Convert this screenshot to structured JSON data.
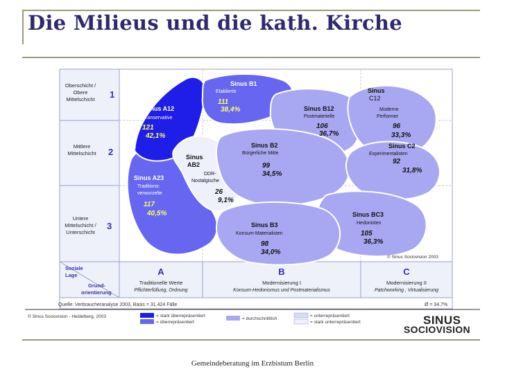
{
  "title": "Die Milieus und die kath. Kirche",
  "footer": "Gemeindeberatung im Erzbistum Berlin",
  "colors": {
    "strongly_over": "#1e1ee8",
    "over": "#6666f0",
    "average": "#a8a8f2",
    "under": "#d9dcf5",
    "strongly_under": "#eef0fb",
    "grid_border": "#9aa0c8",
    "label_box": "#eef1fa"
  },
  "rows": [
    {
      "label": "Oberschicht / Obere Mittelschicht",
      "number": "1"
    },
    {
      "label": "Mittlere Mittelschicht",
      "number": "2"
    },
    {
      "label": "Untere Mittelschicht / Unterschicht",
      "number": "3"
    }
  ],
  "axes": {
    "corner_top": "Soziale Lage",
    "corner_bottom": "Grund-orientierung"
  },
  "columns": [
    {
      "letter": "A",
      "line1": "Traditionelle Werte",
      "line2": "Pflichterfüllung, Ordnung"
    },
    {
      "letter": "B",
      "line1": "Modernisierung I",
      "line2": "Konsum-Hedonismus und Postmaterialismus"
    },
    {
      "letter": "C",
      "line1": "Modernisierung II",
      "line2": "Patchworking , Virtualisierung"
    }
  ],
  "milieus": [
    {
      "id": "B1",
      "name": "Sinus B1",
      "sub": "Etablierte",
      "index": "111",
      "share": "38,4%",
      "category": "over"
    },
    {
      "id": "A12",
      "name": "Sinus A12",
      "sub": "Konservative",
      "index": "121",
      "share": "42,1%",
      "category": "strongly_over"
    },
    {
      "id": "B12",
      "name": "Sinus B12",
      "sub": "Postmaterielle",
      "index": "106",
      "share": "36,7%",
      "category": "average"
    },
    {
      "id": "C12",
      "name": "Sinus C12",
      "sub": "Moderne Performer",
      "index": "96",
      "share": "33,3%",
      "category": "average"
    },
    {
      "id": "AB2",
      "name": "Sinus AB2",
      "sub": "DDR-Nostalgische",
      "index": "26",
      "share": "9,1%",
      "category": "strongly_under"
    },
    {
      "id": "B2",
      "name": "Sinus B2",
      "sub": "Bürgerliche Mitte",
      "index": "99",
      "share": "34,5%",
      "category": "average"
    },
    {
      "id": "C2",
      "name": "Sinus C2",
      "sub": "Experimentalisten",
      "index": "92",
      "share": "31,8%",
      "category": "average"
    },
    {
      "id": "A23",
      "name": "Sinus A23",
      "sub": "Traditions-verwurzelte",
      "index": "117",
      "share": "40,5%",
      "category": "over"
    },
    {
      "id": "BC3",
      "name": "Sinus BC3",
      "sub": "Hedonisten",
      "index": "105",
      "share": "36,3%",
      "category": "average"
    },
    {
      "id": "B3",
      "name": "Sinus B3",
      "sub": "Konsum-Materialisten",
      "index": "98",
      "share": "34,0%",
      "category": "average"
    }
  ],
  "copyright_inner": "© Sinus Sociovision 2003",
  "source": "Quelle: Verbraucheranalyse 2003, Basis = 31.424 Fälle",
  "average_note": "Ø = 34,7%",
  "copyright_outer": "© Sinus Sociovision -  Heidelberg, 2003",
  "legend": [
    {
      "label": "= stark überrepräsentiert",
      "category": "strongly_over"
    },
    {
      "label": "= überrepräsentiert",
      "category": "over"
    },
    {
      "label": "= durchschnittlich",
      "category": "average"
    },
    {
      "label": "= unterrepräsentiert",
      "category": "under"
    },
    {
      "label": "= stark unterrepräsentiert",
      "category": "strongly_under"
    }
  ],
  "logo": {
    "line1": "SINUS",
    "line2": "SOCIOVISION"
  }
}
